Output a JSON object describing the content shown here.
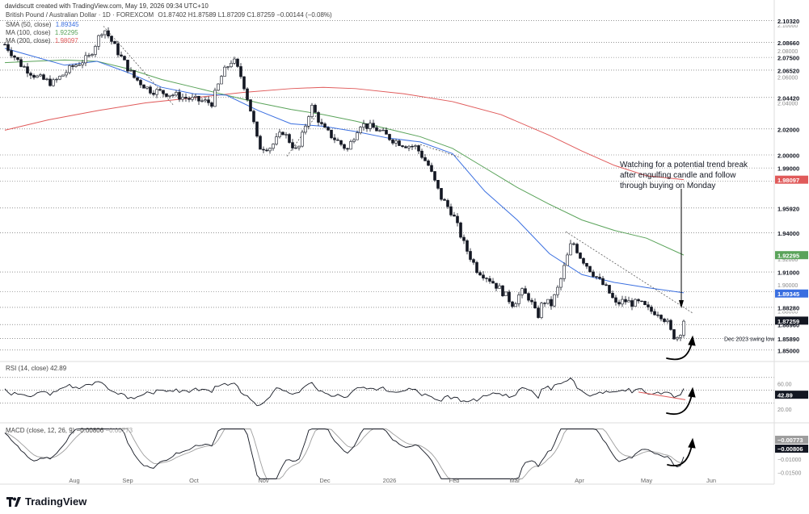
{
  "header": {
    "text": "davidscutt created with TradingView.com, May 19, 2026 09:34 UTC+10"
  },
  "legend": {
    "instrument": "British Pound / Australian Dollar · 1D · FOREXCOM",
    "ohlc": "O1.87402 H1.87589 L1.87209 C1.87259 −0.00144 (−0.08%)",
    "sma50_label": "SMA (50, close)",
    "sma50_value": "1.89345",
    "sma100_label": "MA (100, close)",
    "sma100_value": "1.92295",
    "sma200_label": "MA (200, close)",
    "sma200_value": "1.98097"
  },
  "rsi_label": "RSI (14, close)",
  "rsi_value": "42.89",
  "macd_label": "MACD (close, 12, 26, 9)",
  "macd_value1": "−0.00806",
  "macd_value2": "−0.00773",
  "annotation": "Watching for a potential trend break after engulfing candle and follow through buying on Monday",
  "swing_label": "Dec 2023 swing low",
  "logo_text": "TradingView",
  "colors": {
    "up": "#ffffff",
    "down": "#131722",
    "sma50": "#3a6fe0",
    "sma100": "#5aa35a",
    "sma200": "#e05a5a",
    "rsi": "#131722",
    "macd": "#131722",
    "signal": "#9e9e9e"
  },
  "chart_data": {
    "type": "candlestick",
    "x_labels": [
      "Aug",
      "Sep",
      "Oct",
      "Nov",
      "Dec",
      "2026",
      "Feb",
      "Mar",
      "Apr",
      "May",
      "Jun"
    ],
    "price_axis": {
      "ylim": [
        1.848,
        2.103
      ]
    },
    "price_ticks": [
      "2.10000",
      "2.08000",
      "2.06000",
      "2.04000",
      "2.02000",
      "2.00000",
      "1.98000",
      "1.96000",
      "1.94000",
      "1.92000",
      "1.90000",
      "1.88000",
      "1.86000"
    ],
    "level_labels": [
      {
        "y": 2.1032,
        "text": "2.10320"
      },
      {
        "y": 2.0866,
        "text": "2.08660"
      },
      {
        "y": 2.075,
        "text": "2.07500"
      },
      {
        "y": 2.0652,
        "text": "2.06520"
      },
      {
        "y": 2.0442,
        "text": "2.04420"
      },
      {
        "y": 2.02,
        "text": "2.02000"
      },
      {
        "y": 2.0,
        "text": "2.00000"
      },
      {
        "y": 1.99,
        "text": "1.99000"
      },
      {
        "y": 1.98,
        "text": "1.98000"
      },
      {
        "y": 1.9592,
        "text": "1.95920"
      },
      {
        "y": 1.94,
        "text": "1.94000"
      },
      {
        "y": 1.91,
        "text": "1.91000"
      },
      {
        "y": 1.895,
        "text": "1.89500"
      },
      {
        "y": 1.8828,
        "text": "1.88280"
      },
      {
        "y": 1.8696,
        "text": "1.86960"
      },
      {
        "y": 1.8589,
        "text": "1.85890"
      },
      {
        "y": 1.85,
        "text": "1.85000"
      }
    ],
    "value_tags": [
      {
        "y": 1.98097,
        "text": "1.98097",
        "color": "#e05a5a"
      },
      {
        "y": 1.92295,
        "text": "1.92295",
        "color": "#5aa35a"
      },
      {
        "y": 1.89345,
        "text": "1.89345",
        "color": "#3a6fe0"
      },
      {
        "y": 1.87259,
        "text": "1.87259",
        "color": "#131722"
      }
    ],
    "rsi_axis": {
      "ylim": [
        10,
        80
      ],
      "ticks": [
        "60.00",
        "20.00"
      ]
    },
    "macd_ticks": [
      "−0.01000",
      "−0.01500"
    ]
  }
}
